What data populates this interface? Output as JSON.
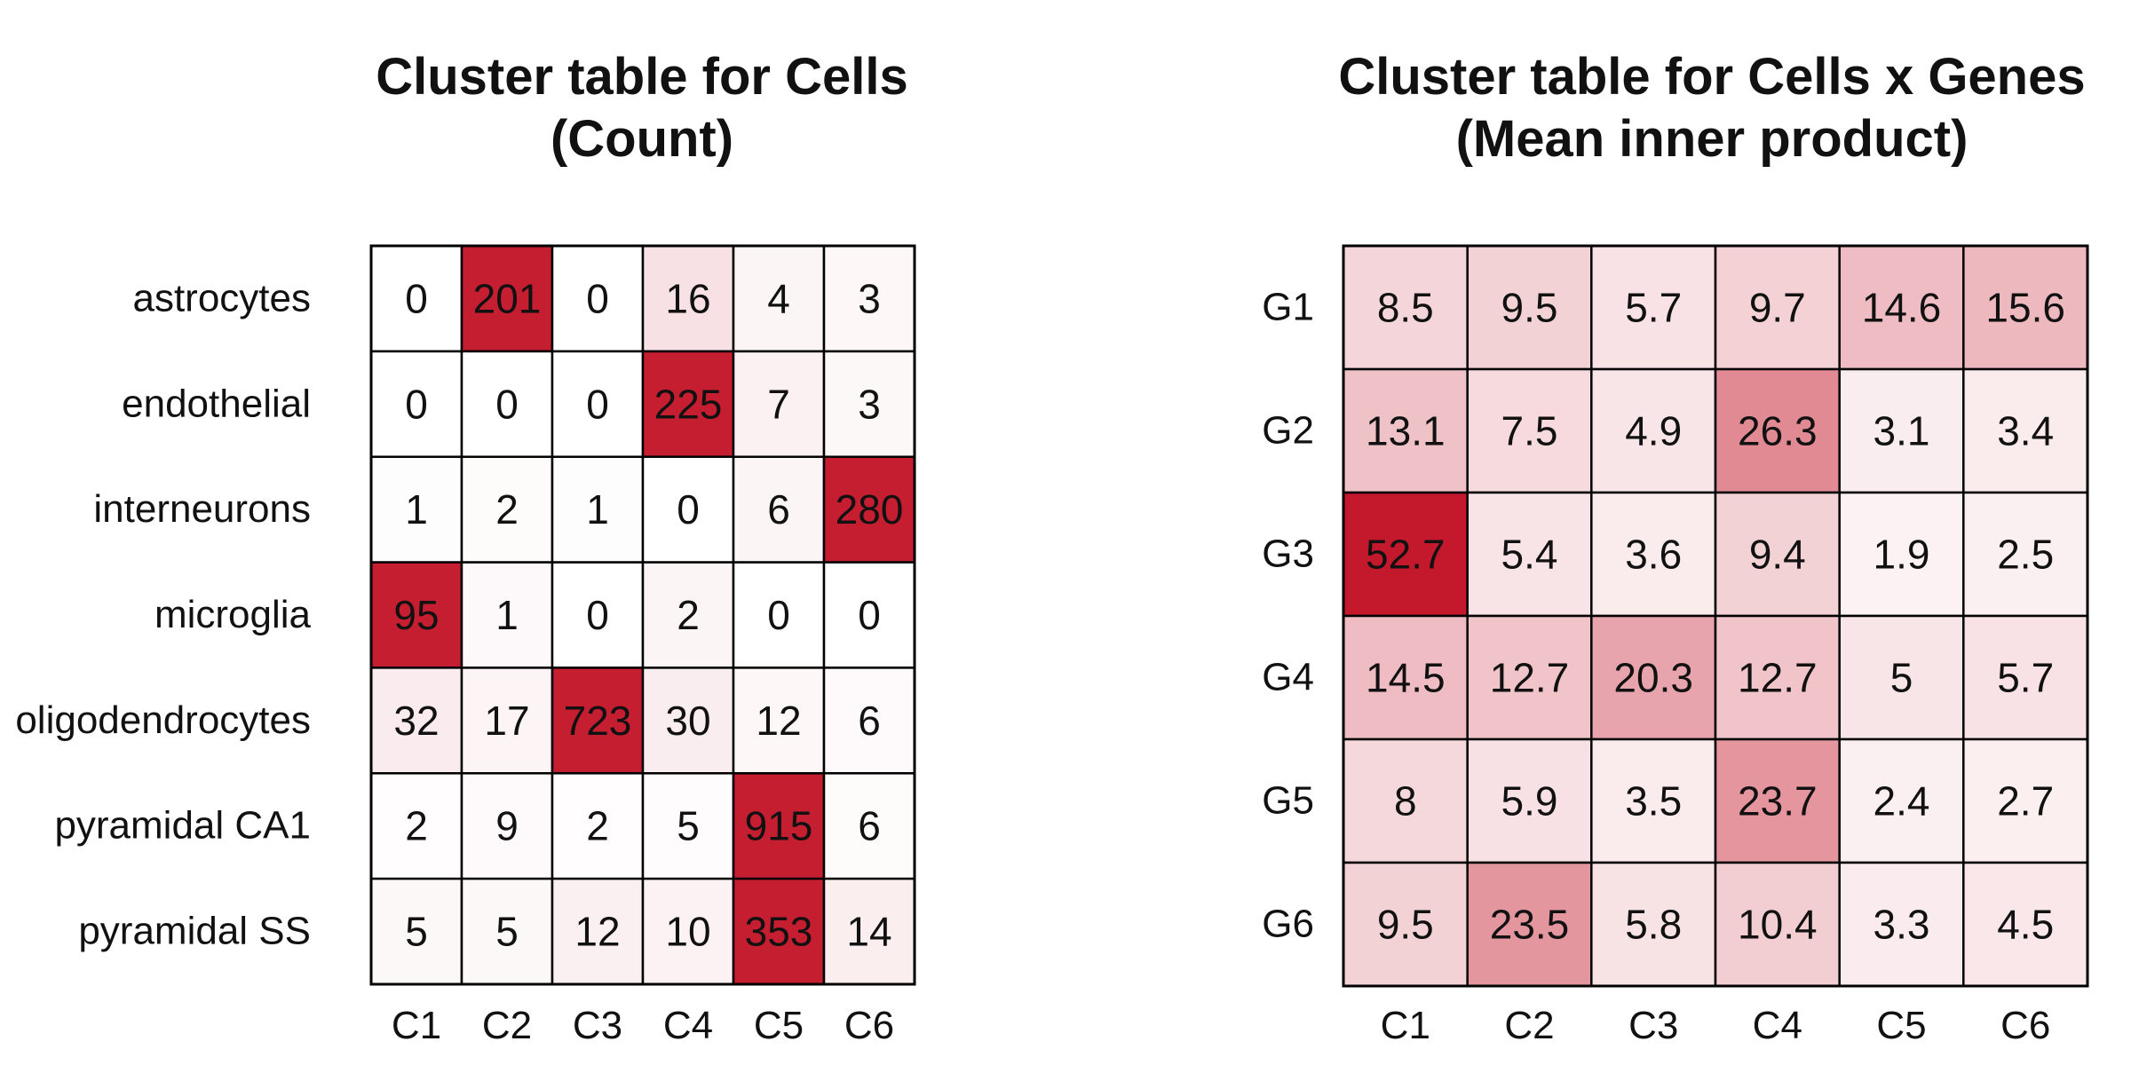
{
  "chart_data": [
    {
      "type": "heatmap",
      "title": "Cluster table for Cells",
      "subtitle": "(Count)",
      "rows": [
        "astrocytes",
        "endothelial",
        "interneurons",
        "microglia",
        "oligodendrocytes",
        "pyramidal CA1",
        "pyramidal SS"
      ],
      "columns": [
        "C1",
        "C2",
        "C3",
        "C4",
        "C5",
        "C6"
      ],
      "values": [
        [
          0,
          201,
          0,
          16,
          4,
          3
        ],
        [
          0,
          0,
          0,
          225,
          7,
          3
        ],
        [
          1,
          2,
          1,
          0,
          6,
          280
        ],
        [
          95,
          1,
          0,
          2,
          0,
          0
        ],
        [
          32,
          17,
          723,
          30,
          12,
          6
        ],
        [
          2,
          9,
          2,
          5,
          915,
          6
        ],
        [
          5,
          5,
          12,
          10,
          353,
          14
        ]
      ],
      "color_scale": "row-normalized",
      "low_color": "#ffffff",
      "high_color": "#c3172b"
    },
    {
      "type": "heatmap",
      "title": "Cluster table for Cells x Genes",
      "subtitle": "(Mean inner product)",
      "rows": [
        "G1",
        "G2",
        "G3",
        "G4",
        "G5",
        "G6"
      ],
      "columns": [
        "C1",
        "C2",
        "C3",
        "C4",
        "C5",
        "C6"
      ],
      "values": [
        [
          8.5,
          9.5,
          5.7,
          9.7,
          14.6,
          15.6
        ],
        [
          13.1,
          7.5,
          4.9,
          26.3,
          3.1,
          3.4
        ],
        [
          52.7,
          5.4,
          3.6,
          9.4,
          1.9,
          2.5
        ],
        [
          14.5,
          12.7,
          20.3,
          12.7,
          5,
          5.7
        ],
        [
          8,
          5.9,
          3.5,
          23.7,
          2.4,
          2.7
        ],
        [
          9.5,
          23.5,
          5.8,
          10.4,
          3.3,
          4.5
        ]
      ],
      "color_scale": "global",
      "low_color": "#ffffff",
      "high_color": "#c3172b"
    }
  ]
}
